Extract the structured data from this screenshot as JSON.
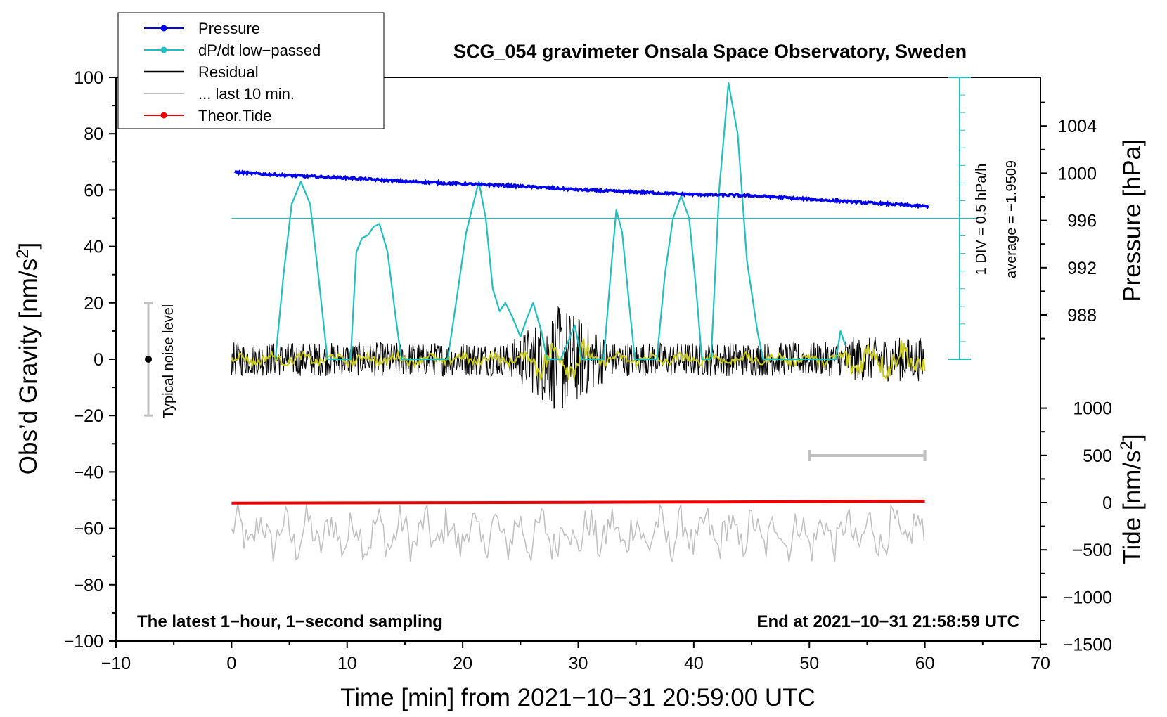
{
  "chart_data": {
    "type": "line",
    "title": "SCG_054 gravimeter Onsala Space Observatory, Sweden",
    "xlabel": "Time [min] from 2021−10−31 20:59:00 UTC",
    "ylabel_main": "Obs’d Gravity [nm/s",
    "ylabel_sup": "2",
    "ylabel_close": "]",
    "pressure_axis_label": "Pressure [hPa]",
    "tide_axis_label": "Tide [nm/s",
    "tide_axis_sup": "2",
    "tide_axis_close": "]",
    "xlim": [
      -10,
      70
    ],
    "ylim": [
      -100,
      100
    ],
    "x_ticks": [
      -10,
      0,
      10,
      20,
      30,
      40,
      50,
      60,
      70
    ],
    "x_tick_labels": [
      "−10",
      "0",
      "10",
      "20",
      "30",
      "40",
      "50",
      "60",
      "70"
    ],
    "y_ticks": [
      -100,
      -80,
      -60,
      -40,
      -20,
      0,
      20,
      40,
      60,
      80,
      100
    ],
    "y_tick_labels": [
      "−100",
      "−80",
      "−60",
      "−40",
      "−20",
      "0",
      "20",
      "40",
      "60",
      "80",
      "100"
    ],
    "pressure_ticks": [
      988,
      992,
      996,
      1000,
      1004
    ],
    "pressure_tick_labels": [
      "988",
      "992",
      "996",
      "1000",
      "1004"
    ],
    "tide_ticks": [
      -1500,
      -1000,
      -500,
      0,
      500,
      1000
    ],
    "tide_tick_labels": [
      "−1500",
      "−1000",
      "−500",
      "0",
      "500",
      "1000"
    ],
    "legend": [
      {
        "label": "Pressure",
        "color": "#0000ee",
        "marker": true
      },
      {
        "label": "dP/dt low−passed",
        "color": "#20c0c0",
        "marker": true
      },
      {
        "label": "Residual",
        "color": "#000000",
        "marker": false
      },
      {
        "label": "... last 10 min.",
        "color": "#c0c0c0",
        "marker": false
      },
      {
        "label": "Theor.Tide",
        "color": "#ee0000",
        "marker": true
      }
    ],
    "annotations": {
      "latest": "The latest 1−hour, 1−second sampling",
      "end_at": "End at 2021−10−31 21:58:59 UTC",
      "noise_level": "Typical noise level",
      "div_scale": "1 DIV = 0.5 hPa/h",
      "average": "average = −1.9509"
    },
    "noise_bar": {
      "x": -7.2,
      "center": 0,
      "half_range": 20
    },
    "last10_bar": {
      "x_start": 50,
      "x_end": 60
    },
    "series": [
      {
        "name": "Pressure",
        "unit": "hPa",
        "color": "#0000ee",
        "x": [
          0,
          5,
          10,
          15,
          20,
          25,
          30,
          35,
          40,
          45,
          50,
          55,
          60
        ],
        "y": [
          1000.1,
          999.8,
          999.6,
          999.3,
          999.1,
          998.9,
          998.6,
          998.4,
          998.2,
          998.1,
          997.8,
          997.5,
          997.2
        ]
      },
      {
        "name": "dP/dt low-passed",
        "unit": "nm/s2 scale",
        "color": "#20c0c0",
        "x": [
          3.8,
          4.5,
          5.2,
          6,
          6.8,
          7.5,
          8.3,
          10.3,
          10.8,
          11.3,
          11.8,
          12.3,
          12.8,
          13.5,
          14.2,
          14.7,
          18.7,
          19.5,
          20.3,
          21.4,
          22,
          22.6,
          23.2,
          23.7,
          24.3,
          25,
          25.6,
          26.1,
          26.8,
          27.3,
          28.5,
          29.7,
          30.3,
          32.2,
          32.8,
          33.3,
          33.8,
          34.4,
          34.9,
          36.8,
          37.5,
          38.2,
          38.9,
          39.6,
          40.2,
          40.7,
          41.5,
          42.2,
          43,
          43.8,
          44.6,
          45.5,
          46,
          52.3,
          52.7,
          53.1
        ],
        "y": [
          0,
          30,
          55,
          63,
          55,
          30,
          0,
          0,
          38,
          43,
          44,
          47,
          48,
          38,
          15,
          0,
          0,
          22,
          45,
          63,
          50,
          25,
          17,
          20,
          15,
          8,
          15,
          20,
          10,
          0,
          0,
          12,
          0,
          0,
          30,
          53,
          45,
          20,
          0,
          0,
          30,
          50,
          58,
          50,
          25,
          0,
          0,
          60,
          98,
          80,
          35,
          10,
          0,
          0,
          10,
          5
        ]
      },
      {
        "name": "Residual",
        "unit": "nm/s2",
        "color": "#000000",
        "x_range": [
          0,
          60
        ],
        "amplitude": 6,
        "burst_window": [
          24,
          33
        ],
        "burst_amplitude": 20
      },
      {
        "name": "Residual smoothed",
        "unit": "nm/s2",
        "color": "#cccc10",
        "x_range": [
          0,
          60
        ],
        "amplitude": 2
      },
      {
        "name": "... last 10 min.",
        "unit": "nm/s2 (offset)",
        "color": "#c0c0c0",
        "x_range": [
          0,
          60
        ],
        "baseline": -62,
        "amplitude": 8
      },
      {
        "name": "Theor.Tide",
        "unit": "nm/s2",
        "color": "#ee0000",
        "x": [
          0,
          10,
          20,
          30,
          40,
          50,
          60
        ],
        "y": [
          -5,
          -3,
          -1,
          2,
          5,
          10,
          15
        ]
      }
    ]
  }
}
